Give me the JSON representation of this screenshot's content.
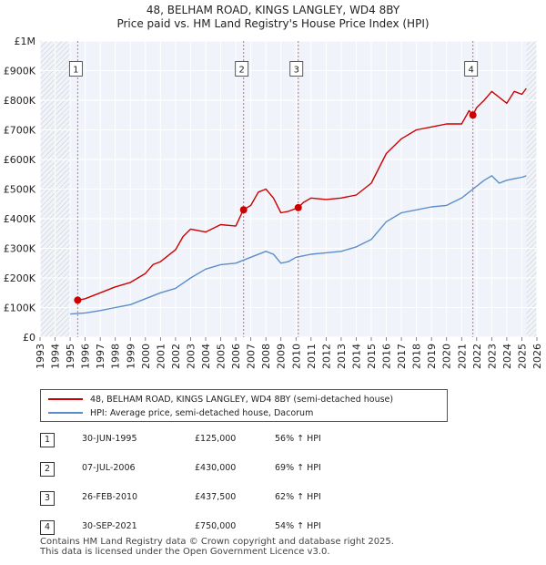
{
  "chart_data": {
    "type": "line",
    "title": "48, BELHAM ROAD, KINGS LANGLEY, WD4 8BY",
    "subtitle": "Price paid vs. HM Land Registry's House Price Index (HPI)",
    "xlim": [
      1993,
      2026
    ],
    "ylim": [
      0,
      1000000
    ],
    "y_ticks": [
      0,
      100000,
      200000,
      300000,
      400000,
      500000,
      600000,
      700000,
      800000,
      900000,
      1000000
    ],
    "y_tick_labels": [
      "£0",
      "£100K",
      "£200K",
      "£300K",
      "£400K",
      "£500K",
      "£600K",
      "£700K",
      "£800K",
      "£900K",
      "£1M"
    ],
    "x_tick_labels": [
      "1993",
      "1994",
      "1995",
      "1996",
      "1997",
      "1998",
      "1999",
      "2000",
      "2001",
      "2002",
      "2003",
      "2004",
      "2005",
      "2006",
      "2007",
      "2008",
      "2009",
      "2010",
      "2011",
      "2012",
      "2013",
      "2014",
      "2015",
      "2016",
      "2017",
      "2018",
      "2019",
      "2020",
      "2021",
      "2022",
      "2023",
      "2024",
      "2025",
      "2026"
    ],
    "series": [
      {
        "name": "48, BELHAM ROAD, KINGS LANGLEY, WD4 8BY (semi-detached house)",
        "color": "#cc0000",
        "x": [
          1995.5,
          1996,
          1997,
          1998,
          1999,
          2000,
          2000.5,
          2001,
          2002,
          2002.5,
          2003,
          2004,
          2005,
          2006,
          2006.5,
          2007,
          2007.5,
          2008,
          2008.5,
          2009,
          2009.5,
          2010.15,
          2010.5,
          2011,
          2012,
          2013,
          2014,
          2015,
          2016,
          2017,
          2018,
          2019,
          2020,
          2021,
          2021.5,
          2021.75,
          2022,
          2022.5,
          2023,
          2023.5,
          2024,
          2024.5,
          2025,
          2025.3
        ],
        "values": [
          125000,
          130000,
          150000,
          170000,
          185000,
          215000,
          245000,
          255000,
          295000,
          340000,
          365000,
          355000,
          380000,
          375000,
          430000,
          445000,
          490000,
          500000,
          470000,
          420000,
          425000,
          437500,
          455000,
          470000,
          465000,
          470000,
          480000,
          520000,
          620000,
          670000,
          700000,
          710000,
          720000,
          720000,
          765000,
          750000,
          775000,
          800000,
          830000,
          810000,
          790000,
          830000,
          820000,
          840000
        ]
      },
      {
        "name": "HPI: Average price, semi-detached house, Dacorum",
        "color": "#5b8ec9",
        "x": [
          1995,
          1996,
          1997,
          1998,
          1999,
          2000,
          2001,
          2002,
          2003,
          2004,
          2005,
          2006,
          2007,
          2008,
          2008.5,
          2009,
          2009.5,
          2010,
          2011,
          2012,
          2013,
          2014,
          2015,
          2016,
          2017,
          2018,
          2019,
          2020,
          2021,
          2022,
          2022.5,
          2023,
          2023.5,
          2024,
          2024.5,
          2025,
          2025.3
        ],
        "values": [
          78000,
          82000,
          90000,
          100000,
          110000,
          130000,
          150000,
          165000,
          200000,
          230000,
          245000,
          250000,
          270000,
          290000,
          280000,
          250000,
          255000,
          270000,
          280000,
          285000,
          290000,
          305000,
          330000,
          390000,
          420000,
          430000,
          440000,
          445000,
          470000,
          510000,
          530000,
          545000,
          520000,
          530000,
          535000,
          540000,
          545000
        ]
      }
    ],
    "sales": [
      {
        "label": "1",
        "x": 1995.5,
        "value": 125000
      },
      {
        "label": "2",
        "x": 2006.52,
        "value": 430000
      },
      {
        "label": "3",
        "x": 2010.15,
        "value": 437500
      },
      {
        "label": "4",
        "x": 2021.75,
        "value": 750000
      }
    ]
  },
  "legend": {
    "property_label": "48, BELHAM ROAD, KINGS LANGLEY, WD4 8BY (semi-detached house)",
    "hpi_label": "HPI: Average price, semi-detached house, Dacorum",
    "property_color": "#cc0000",
    "hpi_color": "#5b8ec9"
  },
  "transactions": [
    {
      "num": "1",
      "date": "30-JUN-1995",
      "price": "£125,000",
      "hpi": "56% ↑ HPI"
    },
    {
      "num": "2",
      "date": "07-JUL-2006",
      "price": "£430,000",
      "hpi": "69% ↑ HPI"
    },
    {
      "num": "3",
      "date": "26-FEB-2010",
      "price": "£437,500",
      "hpi": "62% ↑ HPI"
    },
    {
      "num": "4",
      "date": "30-SEP-2021",
      "price": "£750,000",
      "hpi": "54% ↑ HPI"
    }
  ],
  "footer": {
    "line1": "Contains HM Land Registry data © Crown copyright and database right 2025.",
    "line2": "This data is licensed under the Open Government Licence v3.0."
  }
}
